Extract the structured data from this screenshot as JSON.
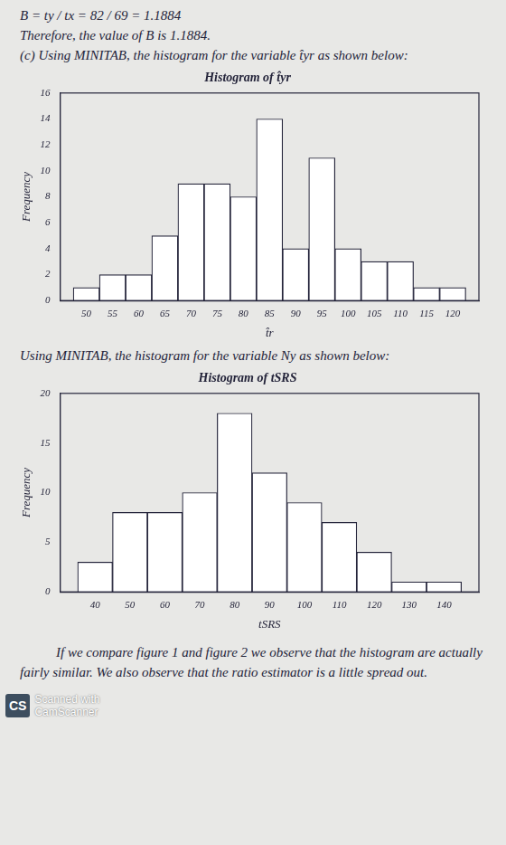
{
  "document": {
    "top_lines": [
      "B = ty / tx = 82 / 69 = 1.1884",
      "Therefore, the value of B is 1.1884."
    ],
    "intro_1": "(c) Using MINITAB, the histogram for the variable t̂yr as shown below:",
    "intro_2": "Using MINITAB, the histogram for the variable Ny as shown below:",
    "conclusion": "If we compare figure 1 and figure 2 we observe that the histogram are actually fairly similar. We also observe that the ratio estimator is a little spread out.",
    "watermark_logo": "CS",
    "watermark_lines": [
      "Scanned with",
      "CamScanner"
    ]
  },
  "chart_data": [
    {
      "type": "histogram",
      "title": "Histogram of t̂yr",
      "x_label": "t̂r",
      "y_label": "Frequency",
      "bins": [
        47.5,
        52.5,
        57.5,
        62.5,
        67.5,
        72.5,
        77.5,
        82.5,
        87.5,
        92.5,
        97.5,
        102.5,
        107.5,
        112.5,
        117.5,
        122.5
      ],
      "values": [
        1,
        2,
        2,
        5,
        9,
        9,
        8,
        14,
        4,
        11,
        4,
        3,
        3,
        1,
        1
      ],
      "xlim": [
        45,
        125
      ],
      "ylim": [
        0,
        16
      ],
      "xticks": [
        50,
        55,
        60,
        65,
        70,
        75,
        80,
        85,
        90,
        95,
        100,
        105,
        110,
        115,
        120
      ],
      "yticks": [
        0,
        2,
        4,
        6,
        8,
        10,
        12,
        14,
        16
      ],
      "color": "#ffffff",
      "grid": false
    },
    {
      "type": "histogram",
      "title": "Histogram of tSRS",
      "x_label": "tSRS",
      "y_label": "Frequency",
      "bins": [
        35,
        45,
        55,
        65,
        75,
        85,
        95,
        105,
        115,
        125,
        135,
        145
      ],
      "values": [
        3,
        8,
        8,
        10,
        18,
        12,
        9,
        7,
        4,
        1,
        1
      ],
      "xlim": [
        30,
        150
      ],
      "ylim": [
        0,
        20
      ],
      "xticks": [
        40,
        50,
        60,
        70,
        80,
        90,
        100,
        110,
        120,
        130,
        140
      ],
      "yticks": [
        0,
        5,
        10,
        15,
        20
      ],
      "color": "#ffffff",
      "grid": false
    }
  ]
}
